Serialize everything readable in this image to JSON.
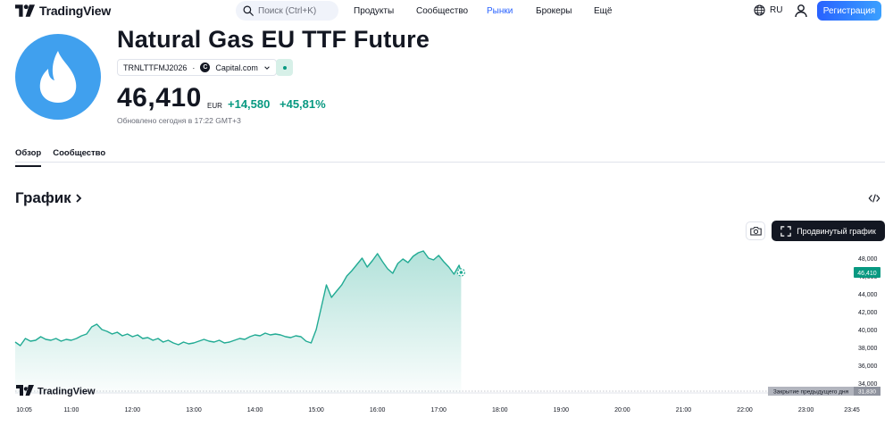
{
  "header": {
    "logo_text": "TradingView",
    "search_placeholder": "Поиск (Ctrl+K)",
    "nav": [
      "Продукты",
      "Сообщество",
      "Рынки",
      "Брокеры",
      "Ещё"
    ],
    "nav_active": "Рынки",
    "language": "RU",
    "register_label": "Регистрация"
  },
  "symbol": {
    "title": "Natural Gas EU TTF Future",
    "ticker": "TRNLTTFMJ2026",
    "provider": "Capital.com",
    "provider_logo_letter": "C",
    "price": "46,410",
    "currency": "EUR",
    "change_abs": "+14,580",
    "change_pct": "+45,81%",
    "updated": "Обновлено сегодня в 17:22 GMT+3"
  },
  "tabs": [
    "Обзор",
    "Сообщество"
  ],
  "chart_section": {
    "title": "График",
    "advanced_label": "Продвинутый график"
  },
  "chart_data": {
    "type": "area",
    "watermark": "TradingView",
    "x_ticks": [
      "10:05",
      "11:00",
      "12:00",
      "13:00",
      "14:00",
      "15:00",
      "16:00",
      "17:00",
      "18:00",
      "19:00",
      "20:00",
      "21:00",
      "22:00",
      "23:00",
      "23:45"
    ],
    "y_ticks": [
      "48,000",
      "46,000",
      "44,000",
      "42,000",
      "40,000",
      "38,000",
      "36,000",
      "34,000"
    ],
    "ylim": [
      32.9,
      49.9
    ],
    "last_price_label": "46,410",
    "prev_close_label": "Закрытие предыдущего дня",
    "prev_close_value": "31,830",
    "series": [
      {
        "x": [
          "10:05",
          "10:10",
          "10:15",
          "10:20",
          "10:25",
          "10:30",
          "10:35",
          "10:40",
          "10:45",
          "10:50",
          "10:55",
          "11:00",
          "11:05",
          "11:10",
          "11:15",
          "11:20",
          "11:25",
          "11:30",
          "11:35",
          "11:40",
          "11:45",
          "11:50",
          "11:55",
          "12:00",
          "12:05",
          "12:10",
          "12:15",
          "12:20",
          "12:25",
          "12:30",
          "12:35",
          "12:40",
          "12:45",
          "12:50",
          "12:55",
          "13:00",
          "13:05",
          "13:10",
          "13:15",
          "13:20",
          "13:25",
          "13:30",
          "13:35",
          "13:40",
          "13:45",
          "13:50",
          "13:55",
          "14:00",
          "14:05",
          "14:10",
          "14:15",
          "14:20",
          "14:25",
          "14:30",
          "14:35",
          "14:40",
          "14:45",
          "14:50",
          "14:55",
          "15:00",
          "15:05",
          "15:10",
          "15:15",
          "15:20",
          "15:25",
          "15:30",
          "15:35",
          "15:40",
          "15:45",
          "15:50",
          "15:55",
          "16:00",
          "16:05",
          "16:10",
          "16:15",
          "16:20",
          "16:25",
          "16:30",
          "16:35",
          "16:40",
          "16:45",
          "16:50",
          "16:55",
          "17:00",
          "17:05",
          "17:10",
          "17:15",
          "17:20",
          "17:22"
        ],
        "values": [
          38.6,
          38.2,
          39.0,
          38.7,
          38.8,
          39.2,
          38.9,
          38.8,
          39.0,
          38.7,
          38.9,
          38.8,
          39.0,
          39.3,
          39.5,
          40.3,
          40.6,
          40.0,
          39.8,
          39.5,
          39.7,
          39.3,
          39.5,
          39.2,
          39.4,
          39.0,
          39.1,
          38.8,
          39.0,
          38.6,
          38.8,
          38.5,
          38.3,
          38.6,
          38.4,
          38.5,
          38.7,
          38.9,
          38.7,
          38.6,
          38.8,
          38.5,
          38.6,
          38.8,
          39.0,
          38.9,
          39.2,
          39.4,
          39.3,
          39.6,
          39.4,
          39.5,
          39.4,
          39.2,
          39.1,
          39.3,
          39.2,
          38.7,
          38.5,
          40.0,
          42.5,
          45.0,
          43.6,
          44.3,
          45.0,
          46.0,
          46.6,
          47.3,
          48.0,
          47.0,
          47.7,
          48.5,
          47.6,
          46.8,
          46.3,
          47.4,
          47.9,
          47.5,
          48.2,
          48.6,
          48.8,
          48.0,
          47.8,
          48.3,
          47.6,
          47.0,
          46.2,
          47.2,
          46.4
        ]
      }
    ]
  },
  "colors": {
    "accent": "#2962ff",
    "positive": "#089981",
    "symbol_icon_bg": "#40a0ee",
    "line": "#22ab94"
  }
}
